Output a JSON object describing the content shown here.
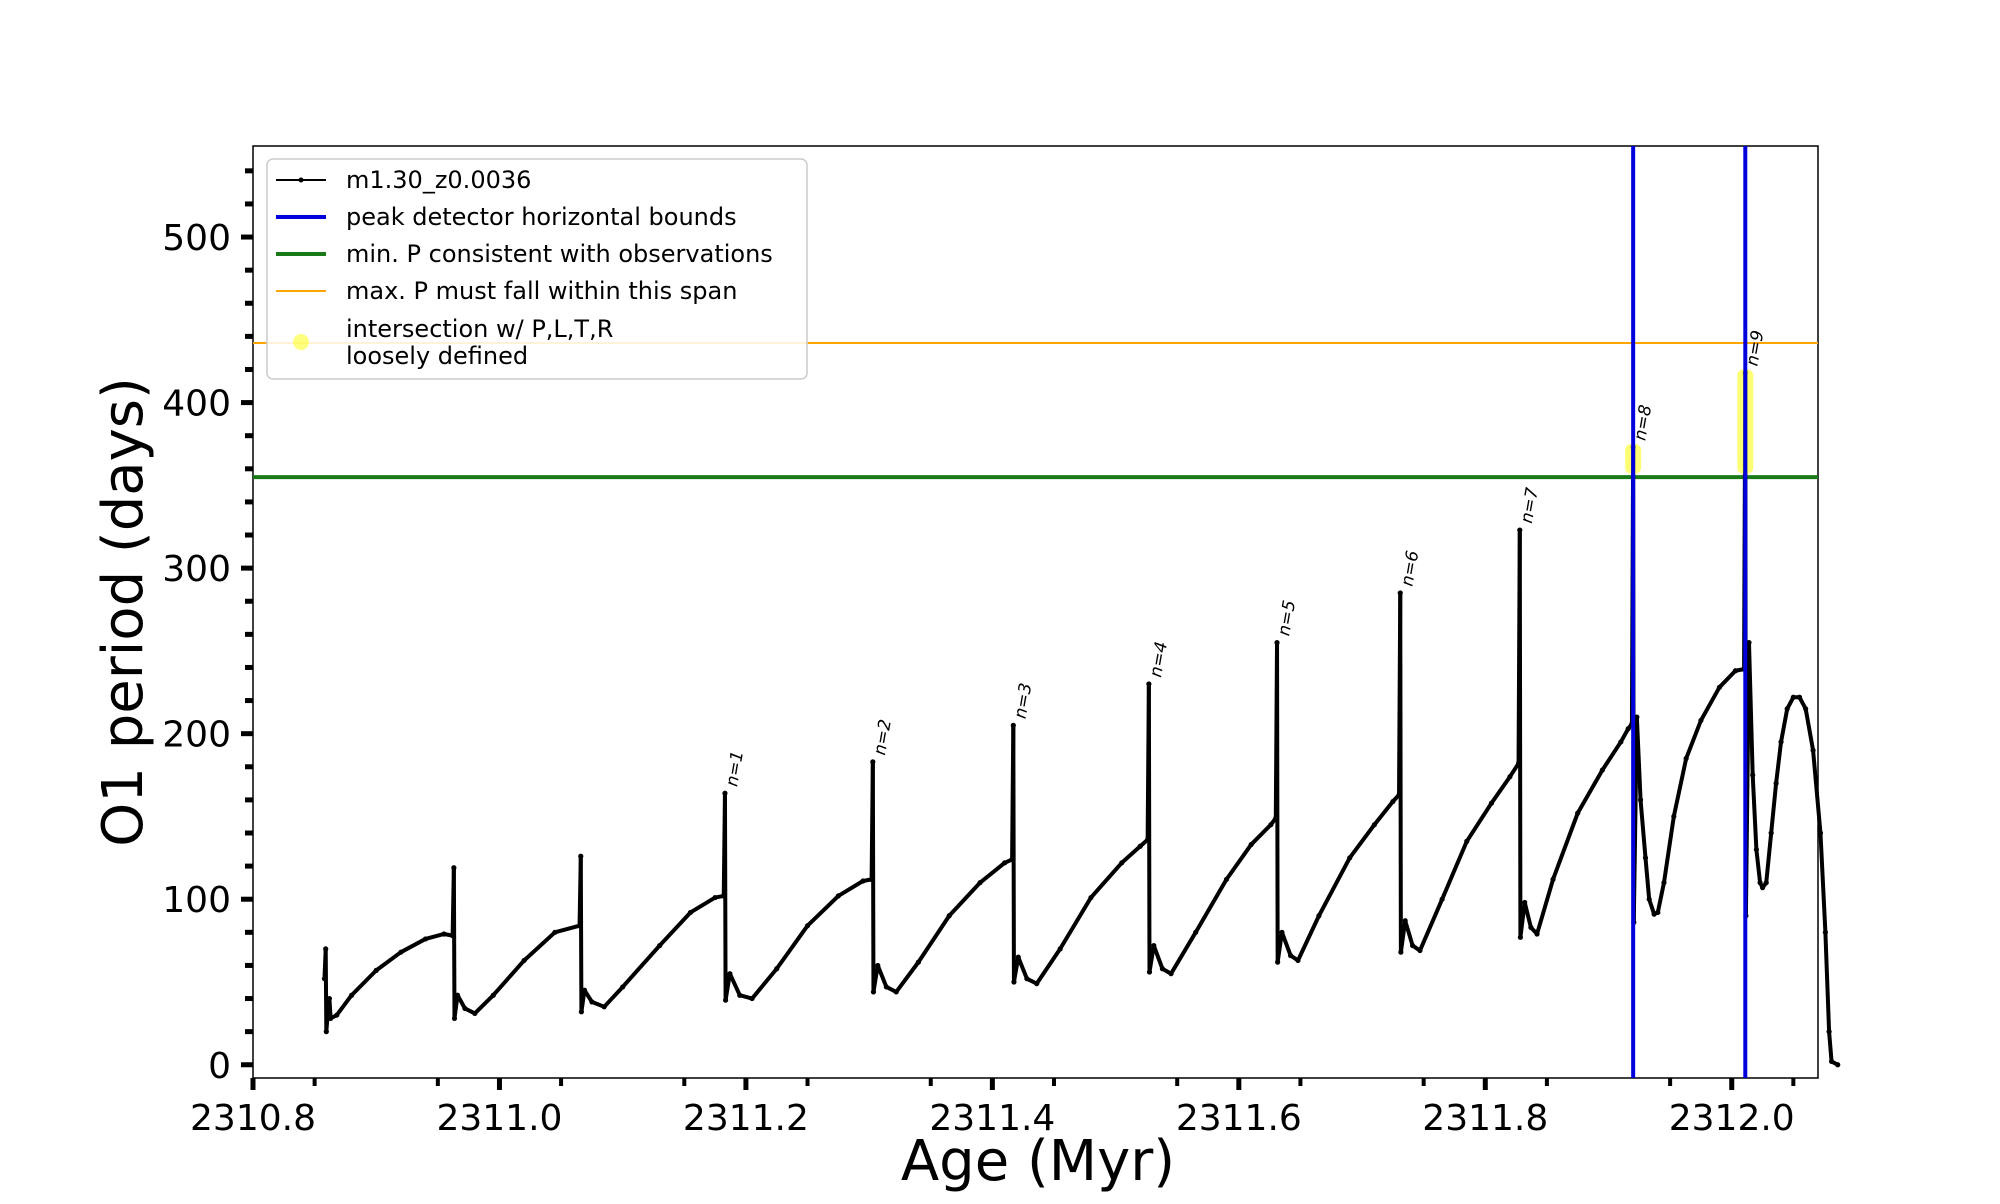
{
  "chart_data": {
    "type": "line",
    "title": "",
    "xlabel": "Age (Myr)",
    "ylabel": "O1 period (days)",
    "xlim": [
      2310.8,
      2312.07
    ],
    "ylim": [
      -8,
      555
    ],
    "x_ticks": [
      2310.8,
      2311.0,
      2311.2,
      2311.4,
      2311.6,
      2311.8,
      2312.0
    ],
    "x_tick_labels": [
      "2310.8",
      "2311.0",
      "2311.2",
      "2311.4",
      "2311.6",
      "2311.8",
      "2312.0"
    ],
    "y_ticks": [
      0,
      100,
      200,
      300,
      400,
      500
    ],
    "y_tick_labels": [
      "0",
      "100",
      "200",
      "300",
      "400",
      "500"
    ],
    "grid": false,
    "legend_position": "top-left",
    "colors": {
      "series": "#000000",
      "peak_bounds": "#0000dd",
      "min_period": "#1a7a1a",
      "max_period": "#ffa500",
      "intersection": "#ffff00"
    },
    "series": [
      {
        "name": "m1.30_z0.0036",
        "points": [
          [
            2310.858,
            52
          ],
          [
            2310.859,
            70
          ],
          [
            2310.8595,
            20
          ],
          [
            2310.861,
            34
          ],
          [
            2310.862,
            40
          ],
          [
            2310.863,
            28
          ],
          [
            2310.868,
            30
          ],
          [
            2310.88,
            42
          ],
          [
            2310.9,
            57
          ],
          [
            2310.92,
            68
          ],
          [
            2310.94,
            76
          ],
          [
            2310.955,
            79
          ],
          [
            2310.962,
            78
          ],
          [
            2310.963,
            119
          ],
          [
            2310.9635,
            28
          ],
          [
            2310.966,
            42
          ],
          [
            2310.972,
            34
          ],
          [
            2310.98,
            31
          ],
          [
            2310.995,
            42
          ],
          [
            2311.02,
            63
          ],
          [
            2311.045,
            80
          ],
          [
            2311.065,
            84
          ],
          [
            2311.066,
            126
          ],
          [
            2311.0665,
            32
          ],
          [
            2311.069,
            45
          ],
          [
            2311.075,
            38
          ],
          [
            2311.085,
            35
          ],
          [
            2311.1,
            47
          ],
          [
            2311.13,
            72
          ],
          [
            2311.155,
            92
          ],
          [
            2311.175,
            101
          ],
          [
            2311.182,
            102
          ],
          [
            2311.183,
            164
          ],
          [
            2311.1835,
            39
          ],
          [
            2311.187,
            55
          ],
          [
            2311.195,
            42
          ],
          [
            2311.205,
            40
          ],
          [
            2311.225,
            58
          ],
          [
            2311.25,
            84
          ],
          [
            2311.275,
            102
          ],
          [
            2311.295,
            111
          ],
          [
            2311.302,
            112
          ],
          [
            2311.303,
            183
          ],
          [
            2311.3035,
            44
          ],
          [
            2311.307,
            60
          ],
          [
            2311.314,
            47
          ],
          [
            2311.322,
            44
          ],
          [
            2311.34,
            62
          ],
          [
            2311.365,
            90
          ],
          [
            2311.39,
            110
          ],
          [
            2311.41,
            122
          ],
          [
            2311.416,
            124
          ],
          [
            2311.417,
            205
          ],
          [
            2311.4175,
            50
          ],
          [
            2311.421,
            65
          ],
          [
            2311.428,
            52
          ],
          [
            2311.436,
            49
          ],
          [
            2311.455,
            70
          ],
          [
            2311.48,
            101
          ],
          [
            2311.505,
            122
          ],
          [
            2311.52,
            132
          ],
          [
            2311.526,
            136
          ],
          [
            2311.527,
            230
          ],
          [
            2311.5275,
            56
          ],
          [
            2311.531,
            72
          ],
          [
            2311.538,
            58
          ],
          [
            2311.545,
            55
          ],
          [
            2311.565,
            80
          ],
          [
            2311.59,
            112
          ],
          [
            2311.61,
            133
          ],
          [
            2311.626,
            145
          ],
          [
            2311.63,
            149
          ],
          [
            2311.631,
            255
          ],
          [
            2311.6315,
            62
          ],
          [
            2311.635,
            80
          ],
          [
            2311.642,
            66
          ],
          [
            2311.648,
            63
          ],
          [
            2311.665,
            90
          ],
          [
            2311.69,
            125
          ],
          [
            2311.71,
            145
          ],
          [
            2311.725,
            159
          ],
          [
            2311.73,
            163
          ],
          [
            2311.731,
            285
          ],
          [
            2311.7315,
            68
          ],
          [
            2311.735,
            87
          ],
          [
            2311.741,
            72
          ],
          [
            2311.747,
            69
          ],
          [
            2311.765,
            100
          ],
          [
            2311.785,
            135
          ],
          [
            2311.805,
            158
          ],
          [
            2311.82,
            174
          ],
          [
            2311.827,
            182
          ],
          [
            2311.828,
            323
          ],
          [
            2311.8285,
            77
          ],
          [
            2311.832,
            98
          ],
          [
            2311.837,
            83
          ],
          [
            2311.842,
            79
          ],
          [
            2311.855,
            112
          ],
          [
            2311.875,
            152
          ],
          [
            2311.895,
            178
          ],
          [
            2311.91,
            195
          ],
          [
            2311.916,
            203
          ],
          [
            2311.919,
            206
          ],
          [
            2311.92,
            373
          ],
          [
            2311.9205,
            86
          ],
          [
            2311.923,
            210
          ],
          [
            2311.926,
            160
          ],
          [
            2311.93,
            125
          ],
          [
            2311.933,
            100
          ],
          [
            2311.937,
            91
          ],
          [
            2311.94,
            92
          ],
          [
            2311.945,
            110
          ],
          [
            2311.953,
            150
          ],
          [
            2311.963,
            185
          ],
          [
            2311.975,
            208
          ],
          [
            2311.99,
            228
          ],
          [
            2312.003,
            238
          ],
          [
            2312.01,
            239
          ],
          [
            2312.011,
            418
          ],
          [
            2312.0115,
            90
          ],
          [
            2312.014,
            255
          ],
          [
            2312.017,
            175
          ],
          [
            2312.02,
            130
          ],
          [
            2312.023,
            110
          ],
          [
            2312.025,
            107
          ],
          [
            2312.028,
            110
          ],
          [
            2312.032,
            140
          ],
          [
            2312.036,
            170
          ],
          [
            2312.04,
            195
          ],
          [
            2312.045,
            215
          ],
          [
            2312.05,
            222
          ],
          [
            2312.055,
            222
          ],
          [
            2312.06,
            215
          ],
          [
            2312.066,
            190
          ],
          [
            2312.072,
            140
          ],
          [
            2312.076,
            80
          ],
          [
            2312.079,
            20
          ],
          [
            2312.081,
            2
          ],
          [
            2312.086,
            0
          ]
        ]
      }
    ],
    "reference_lines": {
      "peak_detector_bounds": [
        2311.92,
        2312.011
      ],
      "min_period": 355,
      "max_period": 436
    },
    "intersections": [
      {
        "x": 2311.92,
        "y_from": 357,
        "y_to": 375
      },
      {
        "x": 2312.011,
        "y_from": 357,
        "y_to": 420
      }
    ],
    "peak_annotations": [
      {
        "label": "n=1",
        "x": 2311.183,
        "y": 164
      },
      {
        "label": "n=2",
        "x": 2311.303,
        "y": 183
      },
      {
        "label": "n=3",
        "x": 2311.417,
        "y": 205
      },
      {
        "label": "n=4",
        "x": 2311.527,
        "y": 230
      },
      {
        "label": "n=5",
        "x": 2311.631,
        "y": 255
      },
      {
        "label": "n=6",
        "x": 2311.731,
        "y": 285
      },
      {
        "label": "n=7",
        "x": 2311.828,
        "y": 323
      },
      {
        "label": "n=8",
        "x": 2311.92,
        "y": 373
      },
      {
        "label": "n=9",
        "x": 2312.011,
        "y": 418
      }
    ],
    "legend": [
      {
        "key": "series",
        "lines": [
          "m1.30_z0.0036"
        ]
      },
      {
        "key": "peak_bounds",
        "lines": [
          "peak detector horizontal bounds"
        ]
      },
      {
        "key": "min_period",
        "lines": [
          "min. P consistent with observations"
        ]
      },
      {
        "key": "max_period",
        "lines": [
          "max. P must fall within this span"
        ]
      },
      {
        "key": "intersection",
        "lines": [
          "intersection w/ P,L,T,R",
          "loosely defined"
        ]
      }
    ]
  }
}
